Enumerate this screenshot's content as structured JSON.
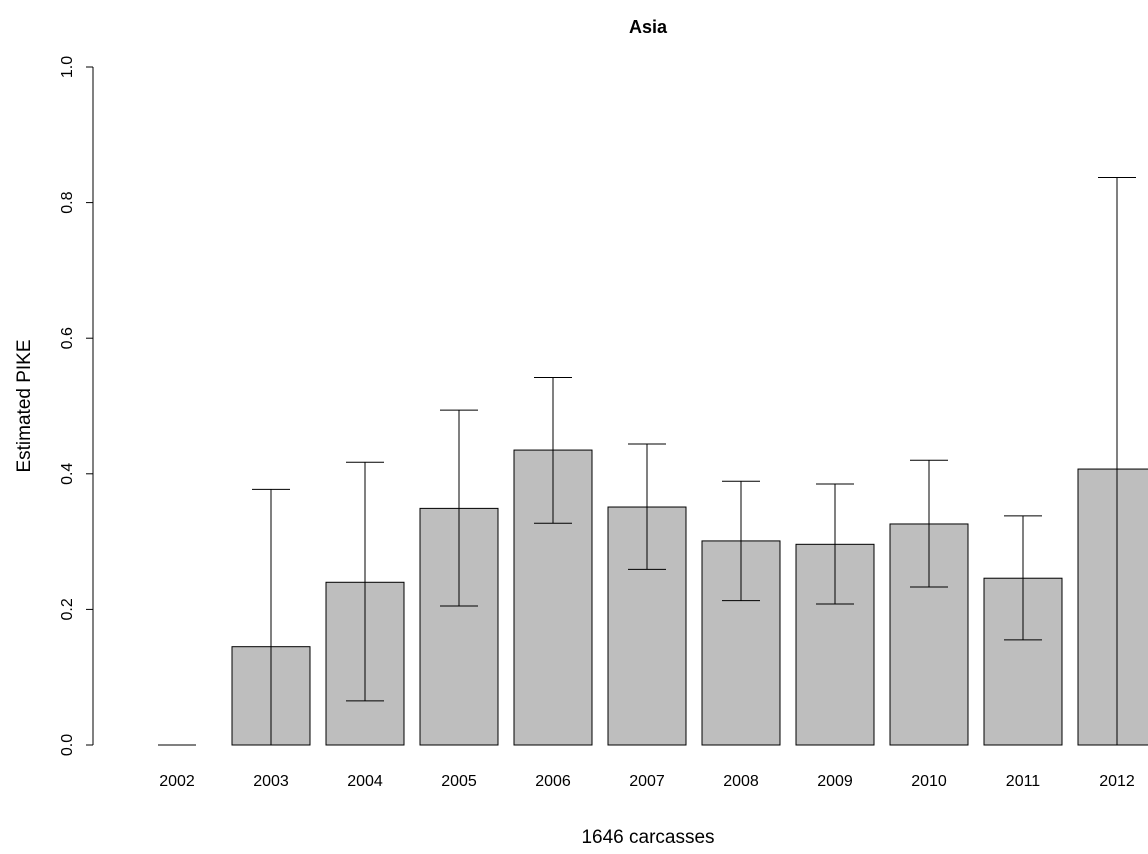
{
  "chart_data": {
    "type": "bar",
    "title": "Asia",
    "xlabel": "1646 carcasses",
    "ylabel": "Estimated PIKE",
    "ylim": [
      0,
      1
    ],
    "yticks": [
      "0.0",
      "0.2",
      "0.4",
      "0.6",
      "0.8",
      "1.0"
    ],
    "categories": [
      "2002",
      "2003",
      "2004",
      "2005",
      "2006",
      "2007",
      "2008",
      "2009",
      "2010",
      "2011",
      "2012"
    ],
    "values": [
      0.0,
      0.145,
      0.24,
      0.349,
      0.435,
      0.351,
      0.301,
      0.296,
      0.326,
      0.246,
      0.407
    ],
    "error_low": [
      0.0,
      0.0,
      0.065,
      0.205,
      0.327,
      0.259,
      0.213,
      0.208,
      0.233,
      0.155,
      0.0
    ],
    "error_high": [
      0.0,
      0.377,
      0.417,
      0.494,
      0.542,
      0.444,
      0.389,
      0.385,
      0.42,
      0.338,
      0.837
    ],
    "bar_color": "#bebebe",
    "grid": false,
    "legend": "none"
  }
}
